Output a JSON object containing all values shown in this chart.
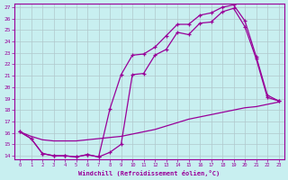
{
  "xlabel": "Windchill (Refroidissement éolien,°C)",
  "xlim": [
    -0.5,
    23.5
  ],
  "ylim": [
    13.7,
    27.3
  ],
  "xticks": [
    0,
    1,
    2,
    3,
    4,
    5,
    6,
    7,
    8,
    9,
    10,
    11,
    12,
    13,
    14,
    15,
    16,
    17,
    18,
    19,
    20,
    21,
    22,
    23
  ],
  "yticks": [
    14,
    15,
    16,
    17,
    18,
    19,
    20,
    21,
    22,
    23,
    24,
    25,
    26,
    27
  ],
  "bg_color": "#c8eff0",
  "line_color": "#990099",
  "grid_color": "#b0c8cc",
  "line1_x": [
    0,
    1,
    2,
    3,
    4,
    5,
    6,
    7,
    8,
    9,
    10,
    11,
    12,
    13,
    14,
    15,
    16,
    17,
    18,
    19,
    20,
    21,
    22,
    23
  ],
  "line1_y": [
    16.1,
    15.5,
    14.2,
    14.0,
    14.0,
    13.9,
    14.1,
    13.9,
    14.3,
    15.0,
    21.1,
    21.2,
    22.8,
    23.3,
    24.8,
    24.6,
    25.6,
    25.7,
    26.6,
    26.9,
    25.3,
    22.5,
    19.1,
    18.8
  ],
  "line2_x": [
    0,
    1,
    2,
    3,
    4,
    5,
    6,
    7,
    8,
    9,
    10,
    11,
    12,
    13,
    14,
    15,
    16,
    17,
    18,
    19,
    20,
    21,
    22,
    23
  ],
  "line2_y": [
    16.1,
    15.7,
    15.4,
    15.3,
    15.3,
    15.3,
    15.4,
    15.5,
    15.6,
    15.7,
    15.9,
    16.1,
    16.3,
    16.6,
    16.9,
    17.2,
    17.4,
    17.6,
    17.8,
    18.0,
    18.2,
    18.3,
    18.5,
    18.7
  ],
  "line3_x": [
    0,
    1,
    2,
    3,
    4,
    5,
    6,
    7,
    8,
    9,
    10,
    11,
    12,
    13,
    14,
    15,
    16,
    17,
    18,
    19,
    20,
    21,
    22,
    23
  ],
  "line3_y": [
    16.1,
    15.5,
    14.2,
    14.0,
    14.0,
    13.9,
    14.1,
    13.9,
    18.1,
    21.1,
    22.8,
    22.9,
    23.5,
    24.5,
    25.5,
    25.5,
    26.3,
    26.5,
    27.0,
    27.2,
    25.8,
    22.7,
    19.3,
    18.8
  ]
}
